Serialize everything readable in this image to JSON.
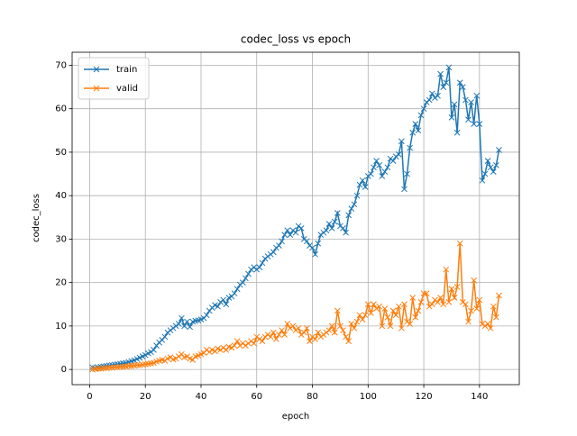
{
  "chart_data": {
    "type": "line",
    "title": "codec_loss vs epoch",
    "xlabel": "epoch",
    "ylabel": "codec_loss",
    "x": [
      1,
      2,
      3,
      4,
      5,
      6,
      7,
      8,
      9,
      10,
      11,
      12,
      13,
      14,
      15,
      16,
      17,
      18,
      19,
      20,
      21,
      22,
      23,
      24,
      25,
      26,
      27,
      28,
      29,
      30,
      31,
      32,
      33,
      34,
      35,
      36,
      37,
      38,
      39,
      40,
      41,
      42,
      43,
      44,
      45,
      46,
      47,
      48,
      49,
      50,
      51,
      52,
      53,
      54,
      55,
      56,
      57,
      58,
      59,
      60,
      61,
      62,
      63,
      64,
      65,
      66,
      67,
      68,
      69,
      70,
      71,
      72,
      73,
      74,
      75,
      76,
      77,
      78,
      79,
      80,
      81,
      82,
      83,
      84,
      85,
      86,
      87,
      88,
      89,
      90,
      91,
      92,
      93,
      94,
      95,
      96,
      97,
      98,
      99,
      100,
      101,
      102,
      103,
      104,
      105,
      106,
      107,
      108,
      109,
      110,
      111,
      112,
      113,
      114,
      115,
      116,
      117,
      118,
      119,
      120,
      121,
      122,
      123,
      124,
      125,
      126,
      127,
      128,
      129,
      130,
      131,
      132,
      133,
      134,
      135,
      136,
      137,
      138,
      139,
      140,
      141,
      142,
      143,
      144,
      145,
      146,
      147
    ],
    "series": [
      {
        "name": "train",
        "color": "#1f77b4",
        "values": [
          0.5,
          0.3,
          0.5,
          0.6,
          0.7,
          0.8,
          0.9,
          1.0,
          1.1,
          1.2,
          1.3,
          1.4,
          1.5,
          1.7,
          1.9,
          2.1,
          2.4,
          2.7,
          3.0,
          3.3,
          3.7,
          4.0,
          4.5,
          5.5,
          6.2,
          6.8,
          7.5,
          8.5,
          9.0,
          9.5,
          10.0,
          10.5,
          11.8,
          10.0,
          11.0,
          9.8,
          11.0,
          11.2,
          11.3,
          11.5,
          11.8,
          12.5,
          13.5,
          14.2,
          14.8,
          14.5,
          15.5,
          16.0,
          15.0,
          16.5,
          16.8,
          17.5,
          18.5,
          19.5,
          20.0,
          21.0,
          22.0,
          23.0,
          23.5,
          23.0,
          23.5,
          24.5,
          25.5,
          26.0,
          26.5,
          27.0,
          28.0,
          28.5,
          29.5,
          31.0,
          32.0,
          31.0,
          32.0,
          31.5,
          33.0,
          32.5,
          30.0,
          29.5,
          28.5,
          28.0,
          26.5,
          29.0,
          31.0,
          31.5,
          32.0,
          33.5,
          32.5,
          34.0,
          36.0,
          33.0,
          32.5,
          31.5,
          35.5,
          37.0,
          38.0,
          40.0,
          42.5,
          43.5,
          42.0,
          44.5,
          45.0,
          46.5,
          48.0,
          47.0,
          44.5,
          45.5,
          46.5,
          48.5,
          48.0,
          49.0,
          49.5,
          52.5,
          41.5,
          45.0,
          51.0,
          54.5,
          56.5,
          55.0,
          58.5,
          60.0,
          61.5,
          62.0,
          63.5,
          62.5,
          63.0,
          68.0,
          65.0,
          66.0,
          69.5,
          58.0,
          61.0,
          54.5,
          66.0,
          65.0,
          62.0,
          57.5,
          61.5,
          56.5,
          63.0,
          56.5,
          43.5,
          45.0,
          48.0,
          46.5,
          45.5,
          47.0,
          50.5
        ]
      },
      {
        "name": "valid",
        "color": "#ff7f0e",
        "values": [
          0,
          0.1,
          0.2,
          0.2,
          0.3,
          0.3,
          0.4,
          0.4,
          0.5,
          0.5,
          0.6,
          0.6,
          0.7,
          0.8,
          0.8,
          0.9,
          1.0,
          1.0,
          1.1,
          1.2,
          1.3,
          1.4,
          1.5,
          1.8,
          2.0,
          2.2,
          2.0,
          2.5,
          2.8,
          2.3,
          2.5,
          3.0,
          3.5,
          2.8,
          3.0,
          2.5,
          2.2,
          3.0,
          3.2,
          3.5,
          3.8,
          4.5,
          4.0,
          4.5,
          4.2,
          4.8,
          4.5,
          5.0,
          4.5,
          5.2,
          5.0,
          5.5,
          6.5,
          5.5,
          6.0,
          5.5,
          6.0,
          6.5,
          6.0,
          7.5,
          7.0,
          6.5,
          7.5,
          8.0,
          7.5,
          8.5,
          7.0,
          8.0,
          9.0,
          8.0,
          10.5,
          9.5,
          10.0,
          9.0,
          9.5,
          8.0,
          8.5,
          9.5,
          6.5,
          7.5,
          7.0,
          8.5,
          7.5,
          8.0,
          8.5,
          9.0,
          10.0,
          8.5,
          13.5,
          10.0,
          9.0,
          7.5,
          6.5,
          10.5,
          9.5,
          11.0,
          12.5,
          11.5,
          12.5,
          15.0,
          13.0,
          15.0,
          14.0,
          14.5,
          10.0,
          14.0,
          12.0,
          10.0,
          13.5,
          12.5,
          14.5,
          9.5,
          15.0,
          11.0,
          10.5,
          16.5,
          12.0,
          13.5,
          15.5,
          17.5,
          17.5,
          14.5,
          15.0,
          16.0,
          15.5,
          16.5,
          15.0,
          23.0,
          15.5,
          18.5,
          16.5,
          19.0,
          29.0,
          15.5,
          15.0,
          11.0,
          13.5,
          20.5,
          14.0,
          16.0,
          10.5,
          10.0,
          10.5,
          9.5,
          14.5,
          12.0,
          17.0
        ]
      }
    ],
    "xlim": [
      -6.3,
      154.3
    ],
    "xticks": [
      0,
      20,
      40,
      60,
      80,
      100,
      120,
      140
    ],
    "ylim": [
      -3.5,
      73.0
    ],
    "yticks": [
      0,
      10,
      20,
      30,
      40,
      50,
      60,
      70
    ],
    "grid": true,
    "legend": "upper left"
  }
}
